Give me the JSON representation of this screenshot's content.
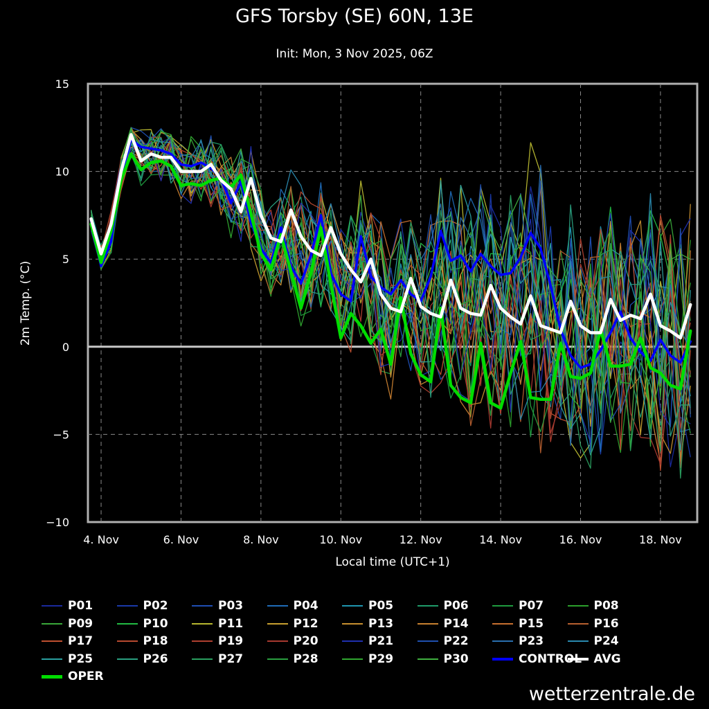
{
  "chart_data": {
    "type": "line",
    "title": "GFS Torsby (SE) 60N, 13E",
    "subtitle": "Init: Mon, 3 Nov 2025, 06Z",
    "xlabel": "Local time (UTC+1)",
    "ylabel": "2m Temp. (°C)",
    "ylim": [
      -10,
      15
    ],
    "yticks": [
      15,
      10,
      5,
      0,
      -5,
      -10
    ],
    "xlim_days": [
      3.67,
      18.92
    ],
    "xticks": [
      {
        "label": "4. Nov",
        "day": 4
      },
      {
        "label": "6. Nov",
        "day": 6
      },
      {
        "label": "8. Nov",
        "day": 8
      },
      {
        "label": "10. Nov",
        "day": 10
      },
      {
        "label": "12. Nov",
        "day": 12
      },
      {
        "label": "14. Nov",
        "day": 14
      },
      {
        "label": "16. Nov",
        "day": 16
      },
      {
        "label": "18. Nov",
        "day": 18
      }
    ],
    "grid": true,
    "x": [
      "3.75",
      "4.0",
      "4.25",
      "4.5",
      "4.75",
      "5.0",
      "5.25",
      "5.5",
      "5.75",
      "6.0",
      "6.25",
      "6.5",
      "6.75",
      "7.0",
      "7.25",
      "7.5",
      "7.75",
      "8.0",
      "8.25",
      "8.5",
      "8.75",
      "9.0",
      "9.25",
      "9.5",
      "9.75",
      "10.0",
      "10.25",
      "10.5",
      "10.75",
      "11.0",
      "11.25",
      "11.5",
      "11.75",
      "12.0",
      "12.25",
      "12.5",
      "12.75",
      "13.0",
      "13.25",
      "13.5",
      "13.75",
      "14.0",
      "14.25",
      "14.5",
      "14.75",
      "15.0",
      "15.25",
      "15.5",
      "15.75",
      "16.0",
      "16.25",
      "16.5",
      "16.75",
      "17.0",
      "17.25",
      "17.5",
      "17.75",
      "18.0",
      "18.25",
      "18.5",
      "18.75"
    ],
    "series": [
      {
        "name": "CONTROL",
        "color": "#0000ff",
        "width": 3.5,
        "values": [
          7.2,
          4.6,
          6.0,
          9.8,
          11.8,
          11.4,
          11.3,
          11.2,
          11.0,
          10.4,
          10.3,
          10.5,
          10.2,
          9.6,
          8.2,
          9.4,
          7.1,
          5.6,
          4.8,
          6.8,
          4.6,
          3.6,
          5.2,
          7.5,
          4.2,
          3.0,
          2.6,
          6.3,
          4.0,
          3.4,
          3.0,
          3.8,
          3.0,
          2.6,
          4.0,
          6.6,
          4.9,
          5.2,
          4.3,
          5.3,
          4.6,
          4.1,
          4.2,
          5.1,
          6.5,
          5.6,
          3.5,
          1.0,
          -0.5,
          -1.2,
          -1.0,
          -0.2,
          0.8,
          2.0,
          0.5,
          -0.3,
          -0.8,
          0.4,
          -0.5,
          -0.9,
          0.3
        ]
      },
      {
        "name": "OPER",
        "color": "#00dd00",
        "width": 4.5,
        "values": [
          7.0,
          4.8,
          6.6,
          9.5,
          11.0,
          10.1,
          10.5,
          10.6,
          10.3,
          9.2,
          9.3,
          9.2,
          9.5,
          9.6,
          9.1,
          9.8,
          7.6,
          5.3,
          4.4,
          6.4,
          4.3,
          2.2,
          4.2,
          6.8,
          3.6,
          0.5,
          1.9,
          1.2,
          0.2,
          1.0,
          -1.0,
          2.8,
          -0.4,
          -1.6,
          -2.0,
          2.2,
          -2.2,
          -2.9,
          -3.2,
          0.2,
          -3.2,
          -3.5,
          -1.5,
          0.3,
          -2.9,
          -3.0,
          -3.0,
          0.2,
          -1.7,
          -1.8,
          -1.5,
          1.0,
          -1.1,
          -1.1,
          -1.0,
          0.5,
          -1.2,
          -1.5,
          -2.2,
          -2.4,
          0.9
        ]
      },
      {
        "name": "AVG",
        "color": "#ffffff",
        "width": 4.5,
        "values": [
          7.3,
          5.3,
          7.0,
          10.0,
          12.1,
          10.6,
          11.0,
          10.8,
          10.8,
          10.0,
          10.0,
          10.0,
          10.4,
          9.5,
          9.0,
          7.7,
          9.6,
          7.5,
          6.2,
          6.0,
          7.8,
          6.3,
          5.5,
          5.2,
          6.8,
          5.3,
          4.4,
          3.7,
          5.0,
          3.0,
          2.2,
          2.0,
          3.9,
          2.3,
          1.9,
          1.7,
          3.8,
          2.2,
          1.9,
          1.8,
          3.5,
          2.2,
          1.7,
          1.3,
          2.9,
          1.2,
          1.0,
          0.8,
          2.6,
          1.2,
          0.8,
          0.8,
          2.7,
          1.5,
          1.8,
          1.6,
          3.0,
          1.2,
          0.9,
          0.5,
          2.4
        ]
      }
    ],
    "legend": [
      {
        "name": "P01",
        "color": "#1a2a9e"
      },
      {
        "name": "P02",
        "color": "#1a3aaa"
      },
      {
        "name": "P03",
        "color": "#1f4fb4"
      },
      {
        "name": "P04",
        "color": "#1f6cb8"
      },
      {
        "name": "P05",
        "color": "#1f96b0"
      },
      {
        "name": "P06",
        "color": "#1f9c6a"
      },
      {
        "name": "P07",
        "color": "#1f9c3f"
      },
      {
        "name": "P08",
        "color": "#2ca02c"
      },
      {
        "name": "P09",
        "color": "#3aa83a"
      },
      {
        "name": "P10",
        "color": "#22bb44"
      },
      {
        "name": "P11",
        "color": "#b8b830"
      },
      {
        "name": "P12",
        "color": "#c8a030"
      },
      {
        "name": "P13",
        "color": "#c89030"
      },
      {
        "name": "P14",
        "color": "#c88030"
      },
      {
        "name": "P15",
        "color": "#c87030"
      },
      {
        "name": "P16",
        "color": "#b86030"
      },
      {
        "name": "P17",
        "color": "#c05030"
      },
      {
        "name": "P18",
        "color": "#b84a30"
      },
      {
        "name": "P19",
        "color": "#b04030"
      },
      {
        "name": "P20",
        "color": "#a83a30"
      },
      {
        "name": "P21",
        "color": "#2030b0"
      },
      {
        "name": "P22",
        "color": "#2050b0"
      },
      {
        "name": "P23",
        "color": "#2a70b0"
      },
      {
        "name": "P24",
        "color": "#2a8ab0"
      },
      {
        "name": "P25",
        "color": "#2aa0a0"
      },
      {
        "name": "P26",
        "color": "#2aa080"
      },
      {
        "name": "P27",
        "color": "#2aa060"
      },
      {
        "name": "P28",
        "color": "#2aa040"
      },
      {
        "name": "P29",
        "color": "#30a830"
      },
      {
        "name": "P30",
        "color": "#40b040"
      },
      {
        "name": "CONTROL",
        "color": "#0000ff",
        "width": 4
      },
      {
        "name": "AVG",
        "color": "#ffffff",
        "width": 4
      },
      {
        "name": "OPER",
        "color": "#00dd00",
        "width": 5
      }
    ]
  },
  "watermark": "wetterzentrale.de"
}
